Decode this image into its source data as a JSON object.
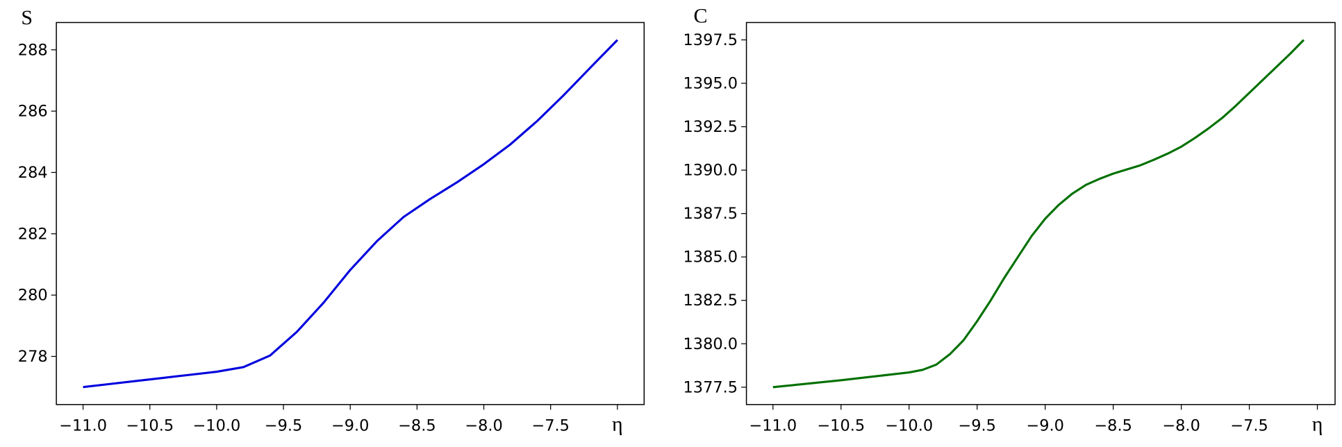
{
  "chart_data": [
    {
      "type": "line",
      "title": "S",
      "x": [
        -11,
        -10.8,
        -10.6,
        -10.4,
        -10.2,
        -10,
        -9.8,
        -9.6,
        -9.4,
        -9.2,
        -9,
        -8.8,
        -8.6,
        -8.4,
        -8.2,
        -8,
        -7.8,
        -7.6,
        -7.4,
        -7.2,
        -7
      ],
      "series": [
        {
          "color": "#0000dd",
          "values": [
            277.0,
            277.1,
            277.2,
            277.3,
            277.4,
            277.5,
            277.65,
            278.03,
            278.8,
            279.75,
            280.82,
            281.76,
            282.55,
            283.14,
            283.68,
            284.27,
            284.92,
            285.68,
            286.53,
            287.43,
            288.32
          ]
        }
      ],
      "xlim": [
        -11.2,
        -6.8
      ],
      "xticks": [
        {
          "value": -11,
          "label": "−11.0"
        },
        {
          "value": -10.5,
          "label": "−10.5"
        },
        {
          "value": -10,
          "label": "−10.0"
        },
        {
          "value": -9.5,
          "label": "−9.5"
        },
        {
          "value": -9,
          "label": "−9.0"
        },
        {
          "value": -8.5,
          "label": "−8.5"
        },
        {
          "value": -8,
          "label": "−8.0"
        },
        {
          "value": -7.5,
          "label": "−7.5"
        },
        {
          "value": -7,
          "label": "η"
        }
      ],
      "ylim": [
        276.43,
        288.89
      ],
      "yticks": [
        278,
        280,
        282,
        284,
        286,
        288
      ]
    },
    {
      "type": "line",
      "title": "C",
      "x": [
        -11,
        -10.9,
        -10.8,
        -10.7,
        -10.6,
        -10.5,
        -10.4,
        -10.3,
        -10.2,
        -10.1,
        -10,
        -9.9,
        -9.8,
        -9.7,
        -9.6,
        -9.5,
        -9.4,
        -9.3,
        -9.2,
        -9.1,
        -9,
        -8.9,
        -8.8,
        -8.7,
        -8.6,
        -8.5,
        -8.4,
        -8.3,
        -8.2,
        -8.1,
        -8,
        -7.9,
        -7.8,
        -7.7,
        -7.6,
        -7.5,
        -7.4,
        -7.3,
        -7.2,
        -7.1
      ],
      "series": [
        {
          "color": "#007000",
          "values": [
            1377.5,
            1377.58,
            1377.66,
            1377.74,
            1377.82,
            1377.9,
            1377.99,
            1378.08,
            1378.17,
            1378.26,
            1378.35,
            1378.5,
            1378.8,
            1379.4,
            1380.2,
            1381.3,
            1382.5,
            1383.8,
            1385.0,
            1386.2,
            1387.2,
            1388.0,
            1388.65,
            1389.15,
            1389.5,
            1389.8,
            1390.04,
            1390.28,
            1390.6,
            1390.95,
            1391.35,
            1391.85,
            1392.4,
            1393.0,
            1393.7,
            1394.45,
            1395.2,
            1395.95,
            1396.7,
            1397.5
          ]
        }
      ],
      "xlim": [
        -11.195,
        -6.87
      ],
      "xticks": [
        {
          "value": -11,
          "label": "−11.0"
        },
        {
          "value": -10.5,
          "label": "−10.5"
        },
        {
          "value": -10,
          "label": "−10.0"
        },
        {
          "value": -9.5,
          "label": "−9.5"
        },
        {
          "value": -9,
          "label": "−9.0"
        },
        {
          "value": -8.5,
          "label": "−8.5"
        },
        {
          "value": -8,
          "label": "−8.0"
        },
        {
          "value": -7.5,
          "label": "−7.5"
        },
        {
          "value": -7,
          "label": "η"
        }
      ],
      "ylim": [
        1376.5,
        1398.5
      ],
      "yticks": [
        1377.5,
        {
          "value": 1380,
          "label": "1380.0"
        },
        1382.5,
        {
          "value": 1385,
          "label": "1385.0"
        },
        1387.5,
        {
          "value": 1390,
          "label": "1390.0"
        },
        1392.5,
        {
          "value": 1395,
          "label": "1395.0"
        },
        1397.5
      ]
    }
  ]
}
